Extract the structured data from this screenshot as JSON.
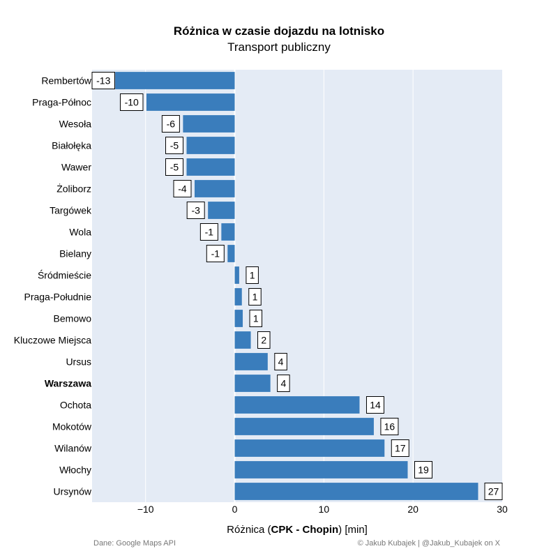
{
  "chart_data": {
    "type": "bar",
    "orientation": "horizontal",
    "title": "Różnica w czasie dojazdu na lotnisko",
    "subtitle": "Transport publiczny",
    "categories": [
      "Rembertów",
      "Praga-Północ",
      "Wesoła",
      "Białołęka",
      "Wawer",
      "Żoliborz",
      "Targówek",
      "Wola",
      "Bielany",
      "Śródmieście",
      "Praga-Południe",
      "Bemowo",
      "Kluczowe Miejsca",
      "Ursus",
      "Warszawa",
      "Ochota",
      "Mokotów",
      "Wilanów",
      "Włochy",
      "Ursynów"
    ],
    "values": [
      -13.4,
      -9.9,
      -5.8,
      -5.4,
      -5.4,
      -4.5,
      -3.0,
      -1.5,
      -0.8,
      0.5,
      0.8,
      0.9,
      1.8,
      3.7,
      4.0,
      14.0,
      15.6,
      16.8,
      19.4,
      27.3
    ],
    "value_labels": [
      "-13",
      "-10",
      "-6",
      "-5",
      "-5",
      "-4",
      "-3",
      "-1",
      "-1",
      "1",
      "1",
      "1",
      "2",
      "4",
      "4",
      "14",
      "16",
      "17",
      "19",
      "27"
    ],
    "highlight_category": "Warszawa",
    "xlabel_prefix": "Różnica (",
    "xlabel_bold": "CPK - Chopin",
    "xlabel_suffix": ") [min]",
    "xlim": [
      -16,
      30
    ],
    "xticks": [
      -10,
      0,
      10,
      20,
      30
    ],
    "xtick_labels": [
      "−10",
      "0",
      "10",
      "20",
      "30"
    ],
    "grid": true,
    "bar_color": "#3a7dbc",
    "plot_background": "#e4ebf5"
  },
  "footer": {
    "source": "Dane: Google Maps API",
    "credit": "© Jakub Kubajek | @Jakub_Kubajek on X"
  }
}
